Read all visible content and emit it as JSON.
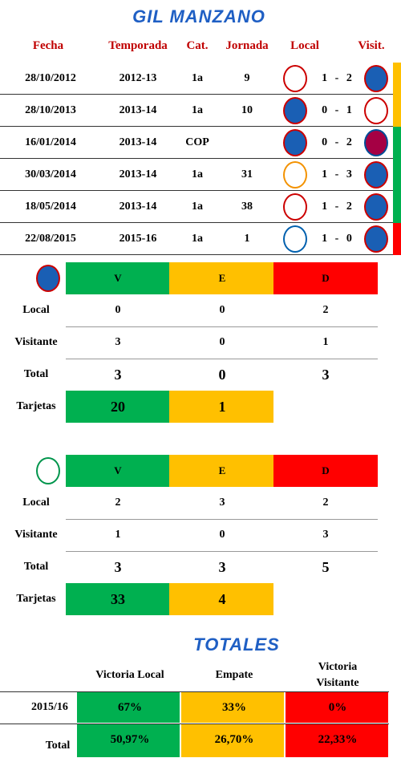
{
  "title": "GIL MANZANO",
  "matches": {
    "headers": [
      "Fecha",
      "Temporada",
      "Cat.",
      "Jornada",
      "Local",
      "Visit."
    ],
    "rows": [
      {
        "date": "28/10/2012",
        "season": "2012-13",
        "category": "1a",
        "round": "9",
        "score": "1 - 2",
        "result_color": "#ffc000"
      },
      {
        "date": "28/10/2013",
        "season": "2013-14",
        "category": "1a",
        "round": "10",
        "score": "0 - 1",
        "result_color": "#ffc000"
      },
      {
        "date": "16/01/2014",
        "season": "2013-14",
        "category": "COP",
        "round": null,
        "score": "0 - 2",
        "result_color": "#00b050"
      },
      {
        "date": "30/03/2014",
        "season": "2013-14",
        "category": "1a",
        "round": "31",
        "score": "1 - 3",
        "result_color": "#00b050"
      },
      {
        "date": "18/05/2014",
        "season": "2013-14",
        "category": "1a",
        "round": "38",
        "score": "1 - 2",
        "result_color": "#00b050"
      },
      {
        "date": "22/08/2015",
        "season": "2015-16",
        "category": "1a",
        "round": "1",
        "score": "1 - 0",
        "result_color": "#ff0000"
      }
    ]
  },
  "teams": [
    {
      "headers": [
        "V",
        "E",
        "D"
      ],
      "rows": [
        {
          "label": "Local",
          "values": [
            "0",
            "0",
            "2"
          ]
        },
        {
          "label": "Visitante",
          "values": [
            "3",
            "0",
            "1"
          ]
        },
        {
          "label": "Total",
          "values": [
            "3",
            "0",
            "3"
          ]
        }
      ],
      "cards": {
        "label": "Tarjetas",
        "values": [
          "20",
          "1"
        ]
      }
    },
    {
      "headers": [
        "V",
        "E",
        "D"
      ],
      "rows": [
        {
          "label": "Local",
          "values": [
            "2",
            "3",
            "2"
          ]
        },
        {
          "label": "Visitante",
          "values": [
            "1",
            "0",
            "3"
          ]
        },
        {
          "label": "Total",
          "values": [
            "3",
            "3",
            "5"
          ]
        }
      ],
      "cards": {
        "label": "Tarjetas",
        "values": [
          "33",
          "4"
        ]
      }
    }
  ],
  "totals": {
    "title": "TOTALES",
    "headers": [
      "Victoria Local",
      "Empate",
      "Victoria Visitante"
    ],
    "rows": [
      {
        "label": "2015/16",
        "values": [
          "67%",
          "33%",
          "0%"
        ]
      },
      {
        "label": "Total",
        "values": [
          "50,97%",
          "26,70%",
          "22,33%"
        ]
      }
    ]
  }
}
